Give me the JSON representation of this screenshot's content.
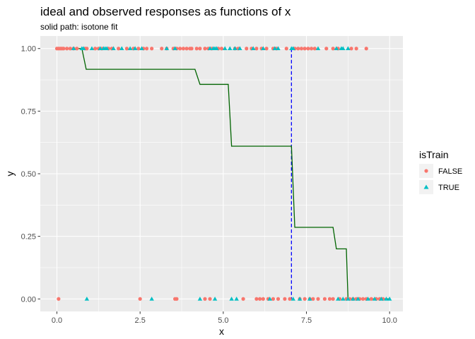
{
  "chart_data": {
    "type": "scatter",
    "title": "ideal and observed responses as functions of x",
    "subtitle": "solid path: isotone fit",
    "xlabel": "x",
    "ylabel": "y",
    "xlim": [
      -0.5,
      10.4
    ],
    "ylim": [
      -0.05,
      1.05
    ],
    "x_ticks": [
      0,
      2.5,
      5,
      7.5,
      10
    ],
    "x_tick_labels": [
      "0.0",
      "2.5",
      "5.0",
      "7.5",
      "10.0"
    ],
    "y_ticks": [
      0,
      0.25,
      0.5,
      0.75,
      1
    ],
    "y_tick_labels": [
      "0.00",
      "0.25",
      "0.50",
      "0.75",
      "1.00"
    ],
    "grid": true,
    "legend": {
      "title": "isTrain",
      "position": "right",
      "entries": [
        {
          "label": "FALSE",
          "shape": "circle",
          "color": "#F8766D"
        },
        {
          "label": "TRUE",
          "shape": "triangle",
          "color": "#00BFC4"
        }
      ]
    },
    "series": [
      {
        "name": "FALSE",
        "shape": "circle",
        "color": "#F8766D",
        "points": [
          [
            0.0,
            1
          ],
          [
            0.05,
            1
          ],
          [
            0.1,
            1
          ],
          [
            0.15,
            1
          ],
          [
            0.2,
            1
          ],
          [
            0.3,
            1
          ],
          [
            0.4,
            1
          ],
          [
            0.5,
            1
          ],
          [
            0.6,
            1
          ],
          [
            0.85,
            1
          ],
          [
            0.9,
            1
          ],
          [
            1.15,
            1
          ],
          [
            1.25,
            1
          ],
          [
            1.35,
            1
          ],
          [
            1.55,
            1
          ],
          [
            1.65,
            1
          ],
          [
            1.85,
            1
          ],
          [
            2.1,
            1
          ],
          [
            2.3,
            1
          ],
          [
            2.45,
            1
          ],
          [
            2.6,
            1
          ],
          [
            2.7,
            1
          ],
          [
            2.85,
            1
          ],
          [
            3.15,
            1
          ],
          [
            3.3,
            1
          ],
          [
            3.5,
            1
          ],
          [
            3.6,
            1
          ],
          [
            3.7,
            1
          ],
          [
            3.8,
            1
          ],
          [
            3.9,
            1
          ],
          [
            4.0,
            1
          ],
          [
            4.05,
            1
          ],
          [
            4.2,
            1
          ],
          [
            4.3,
            1
          ],
          [
            4.45,
            1
          ],
          [
            4.55,
            1
          ],
          [
            4.65,
            1
          ],
          [
            4.85,
            1
          ],
          [
            4.95,
            1
          ],
          [
            5.35,
            1
          ],
          [
            5.45,
            1
          ],
          [
            5.7,
            1
          ],
          [
            5.85,
            1
          ],
          [
            6.0,
            1
          ],
          [
            6.15,
            1
          ],
          [
            6.3,
            1
          ],
          [
            6.5,
            1
          ],
          [
            6.6,
            1
          ],
          [
            6.9,
            1
          ],
          [
            7.15,
            1
          ],
          [
            7.25,
            1
          ],
          [
            7.35,
            1
          ],
          [
            7.45,
            1
          ],
          [
            7.55,
            1
          ],
          [
            7.65,
            1
          ],
          [
            7.75,
            1
          ],
          [
            8.1,
            1
          ],
          [
            8.3,
            1
          ],
          [
            8.45,
            1
          ],
          [
            8.85,
            1
          ],
          [
            9.0,
            1
          ],
          [
            9.3,
            1
          ],
          [
            0.05,
            0
          ],
          [
            2.5,
            0
          ],
          [
            3.55,
            0
          ],
          [
            3.6,
            0
          ],
          [
            4.45,
            0
          ],
          [
            4.6,
            0
          ],
          [
            5.6,
            0
          ],
          [
            6.0,
            0
          ],
          [
            6.1,
            0
          ],
          [
            6.2,
            0
          ],
          [
            6.35,
            0
          ],
          [
            6.5,
            0
          ],
          [
            6.65,
            0
          ],
          [
            6.85,
            0
          ],
          [
            7.0,
            0
          ],
          [
            7.3,
            0
          ],
          [
            7.45,
            0
          ],
          [
            7.6,
            0
          ],
          [
            7.7,
            0
          ],
          [
            7.85,
            0
          ],
          [
            8.05,
            0
          ],
          [
            8.2,
            0
          ],
          [
            8.3,
            0
          ],
          [
            8.5,
            0
          ],
          [
            8.7,
            0
          ],
          [
            8.8,
            0
          ],
          [
            8.9,
            0
          ],
          [
            9.0,
            0
          ],
          [
            9.1,
            0
          ],
          [
            9.2,
            0
          ],
          [
            9.3,
            0
          ],
          [
            9.45,
            0
          ],
          [
            9.6,
            0
          ],
          [
            9.7,
            0
          ],
          [
            9.8,
            0
          ]
        ]
      },
      {
        "name": "TRUE",
        "shape": "triangle",
        "color": "#00BFC4",
        "points": [
          [
            0.5,
            1
          ],
          [
            0.75,
            1
          ],
          [
            0.8,
            1
          ],
          [
            1.05,
            1
          ],
          [
            1.3,
            1
          ],
          [
            1.4,
            1
          ],
          [
            1.45,
            1
          ],
          [
            1.5,
            1
          ],
          [
            1.7,
            1
          ],
          [
            1.95,
            1
          ],
          [
            2.2,
            1
          ],
          [
            2.35,
            1
          ],
          [
            2.55,
            1
          ],
          [
            3.3,
            1
          ],
          [
            3.55,
            1
          ],
          [
            4.6,
            1
          ],
          [
            4.7,
            1
          ],
          [
            4.75,
            1
          ],
          [
            4.8,
            1
          ],
          [
            5.05,
            1
          ],
          [
            5.2,
            1
          ],
          [
            5.35,
            1
          ],
          [
            5.5,
            1
          ],
          [
            5.9,
            1
          ],
          [
            6.2,
            1
          ],
          [
            6.55,
            1
          ],
          [
            6.65,
            1
          ],
          [
            7.05,
            1
          ],
          [
            7.1,
            1
          ],
          [
            7.85,
            1
          ],
          [
            8.4,
            1
          ],
          [
            8.55,
            1
          ],
          [
            8.6,
            1
          ],
          [
            8.75,
            1
          ],
          [
            0.9,
            0
          ],
          [
            2.85,
            0
          ],
          [
            4.3,
            0
          ],
          [
            4.75,
            0
          ],
          [
            5.25,
            0
          ],
          [
            5.4,
            0
          ],
          [
            6.4,
            0
          ],
          [
            7.1,
            0
          ],
          [
            7.3,
            0
          ],
          [
            7.6,
            0
          ],
          [
            8.45,
            0
          ],
          [
            8.6,
            0
          ],
          [
            8.75,
            0
          ],
          [
            8.9,
            0
          ],
          [
            9.05,
            0
          ],
          [
            9.35,
            0
          ],
          [
            9.55,
            0
          ],
          [
            9.75,
            0
          ],
          [
            9.9,
            0
          ],
          [
            10.0,
            0
          ]
        ]
      }
    ],
    "isotone_fit": {
      "color": "#006400",
      "points": [
        [
          0.0,
          1
        ],
        [
          0.75,
          1
        ],
        [
          0.88,
          0.917
        ],
        [
          4.15,
          0.917
        ],
        [
          4.3,
          0.857
        ],
        [
          5.15,
          0.857
        ],
        [
          5.25,
          0.61
        ],
        [
          7.05,
          0.61
        ],
        [
          7.15,
          0.286
        ],
        [
          8.3,
          0.286
        ],
        [
          8.4,
          0.2
        ],
        [
          8.7,
          0.2
        ],
        [
          8.75,
          0
        ],
        [
          10.0,
          0
        ]
      ]
    },
    "threshold_line": {
      "x": 7.05,
      "color": "#0000FF",
      "style": "dashed"
    }
  }
}
